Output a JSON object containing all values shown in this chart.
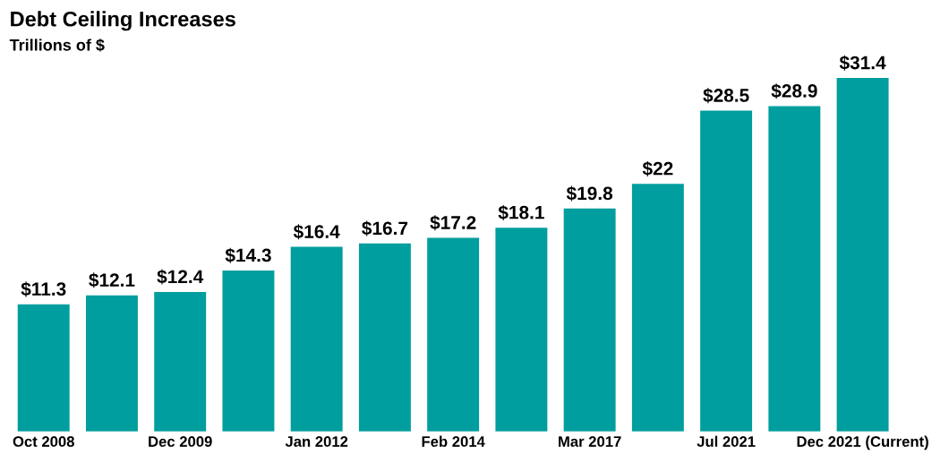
{
  "chart_data": {
    "type": "bar",
    "title": "Debt Ceiling Increases",
    "subtitle": "Trillions of $",
    "categories": [
      "Oct 2008",
      null,
      "Dec 2009",
      null,
      "Jan 2012",
      null,
      "Feb 2014",
      null,
      "Mar 2017",
      null,
      "Jul 2021",
      null,
      "Dec 2021 (Current)"
    ],
    "values": [
      11.3,
      12.1,
      12.4,
      14.3,
      16.4,
      16.7,
      17.2,
      18.1,
      19.8,
      22,
      28.5,
      28.9,
      31.4
    ],
    "value_labels": [
      "$11.3",
      "$12.1",
      "$12.4",
      "$14.3",
      "$16.4",
      "$16.7",
      "$17.2",
      "$18.1",
      "$19.8",
      "$22",
      "$28.5",
      "$28.9",
      "$31.4"
    ],
    "color": "#009e9e",
    "tick_labels": "x",
    "grid": false,
    "legend": false
  }
}
